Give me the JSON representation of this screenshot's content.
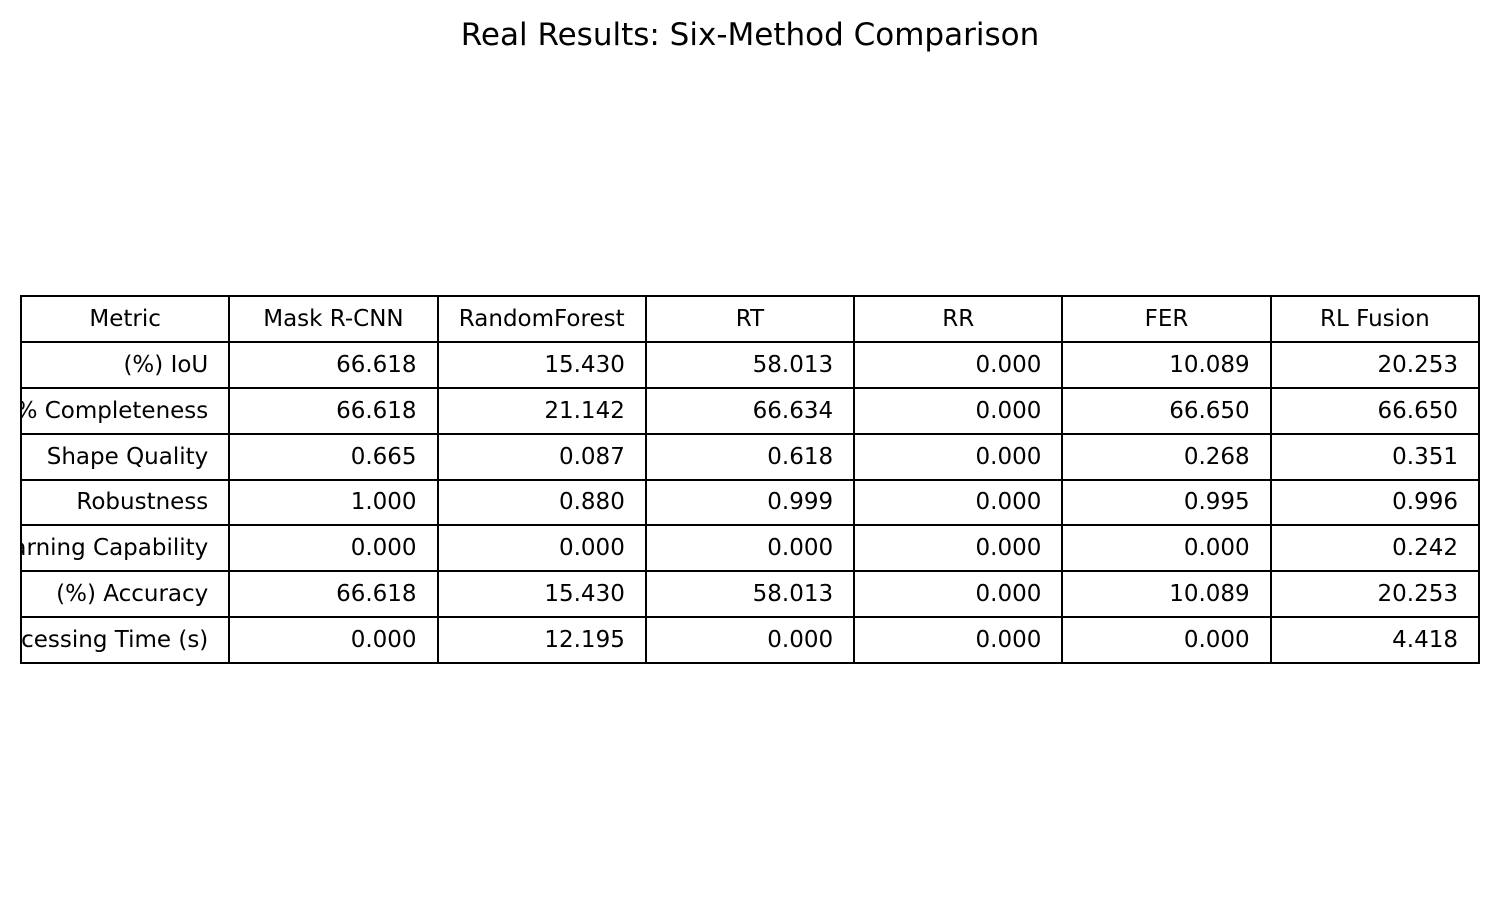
{
  "chart_data": {
    "type": "table",
    "title": "Real Results: Six-Method Comparison",
    "columns": [
      "Metric",
      "Mask R-CNN",
      "RandomForest",
      "RT",
      "RR",
      "FER",
      "RL Fusion"
    ],
    "rows": [
      {
        "label": "IoU (%)",
        "shown_label": "IoU (%)",
        "values": [
          "66.618",
          "15.430",
          "58.013",
          "0.000",
          "10.089",
          "20.253"
        ]
      },
      {
        "label": "Completeness %)",
        "shown_label": "Completeness %)",
        "values": [
          "66.618",
          "21.142",
          "66.634",
          "0.000",
          "66.650",
          "66.650"
        ]
      },
      {
        "label": "Shape Quality",
        "shown_label": "Shape Quality",
        "values": [
          "0.665",
          "0.087",
          "0.618",
          "0.000",
          "0.268",
          "0.351"
        ]
      },
      {
        "label": "Robustness",
        "shown_label": "Robustness",
        "values": [
          "1.000",
          "0.880",
          "0.999",
          "0.000",
          "0.995",
          "0.996"
        ]
      },
      {
        "label": "arning Capability",
        "shown_label": "arning Capability",
        "values": [
          "0.000",
          "0.000",
          "0.000",
          "0.000",
          "0.000",
          "0.242"
        ]
      },
      {
        "label": "Accuracy (%)",
        "shown_label": "Accuracy (%)",
        "values": [
          "66.618",
          "15.430",
          "58.013",
          "0.000",
          "10.089",
          "20.253"
        ]
      },
      {
        "label": "ocessing Time (s)",
        "shown_label": "ocessing Time (s)",
        "values": [
          "0.000",
          "12.195",
          "0.000",
          "0.000",
          "0.000",
          "4.418"
        ]
      }
    ]
  }
}
